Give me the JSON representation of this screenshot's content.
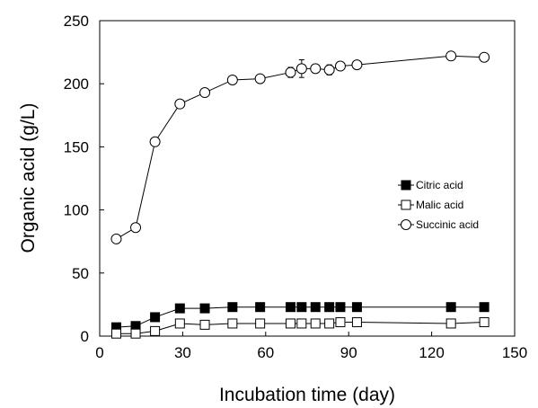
{
  "chart_data": {
    "type": "line",
    "xlabel": "Incubation time (day)",
    "ylabel": "Organic acid (g/L)",
    "xlim": [
      0,
      150
    ],
    "ylim": [
      0,
      250
    ],
    "xticks": [
      0,
      30,
      60,
      90,
      120,
      150
    ],
    "yticks": [
      0,
      50,
      100,
      150,
      200,
      250
    ],
    "grid": false,
    "legend_position": "right",
    "series": [
      {
        "name": "Citric acid",
        "marker": "filled-square",
        "color": "#000000",
        "x": [
          6,
          13,
          20,
          29,
          38,
          48,
          58,
          69,
          73,
          78,
          83,
          87,
          93,
          127,
          139
        ],
        "y": [
          7,
          8,
          15,
          22,
          22,
          23,
          23,
          23,
          23,
          23,
          23,
          23,
          23,
          23,
          23
        ]
      },
      {
        "name": "Malic acid",
        "marker": "open-square",
        "color": "#000000",
        "x": [
          6,
          13,
          20,
          29,
          38,
          48,
          58,
          69,
          73,
          78,
          83,
          87,
          93,
          127,
          139
        ],
        "y": [
          2,
          2,
          4,
          10,
          9,
          10,
          10,
          10,
          10,
          10,
          10,
          11,
          11,
          10,
          11
        ]
      },
      {
        "name": "Succinic acid",
        "marker": "open-circle",
        "color": "#000000",
        "x": [
          6,
          13,
          20,
          29,
          38,
          48,
          58,
          69,
          73,
          78,
          83,
          87,
          93,
          127,
          139
        ],
        "y": [
          77,
          86,
          154,
          184,
          193,
          203,
          204,
          209,
          212,
          212,
          211,
          214,
          215,
          222,
          221
        ],
        "error": [
          0,
          0,
          0,
          0,
          2,
          0,
          0,
          4,
          7,
          3,
          4,
          0,
          0,
          0,
          0
        ]
      }
    ]
  }
}
